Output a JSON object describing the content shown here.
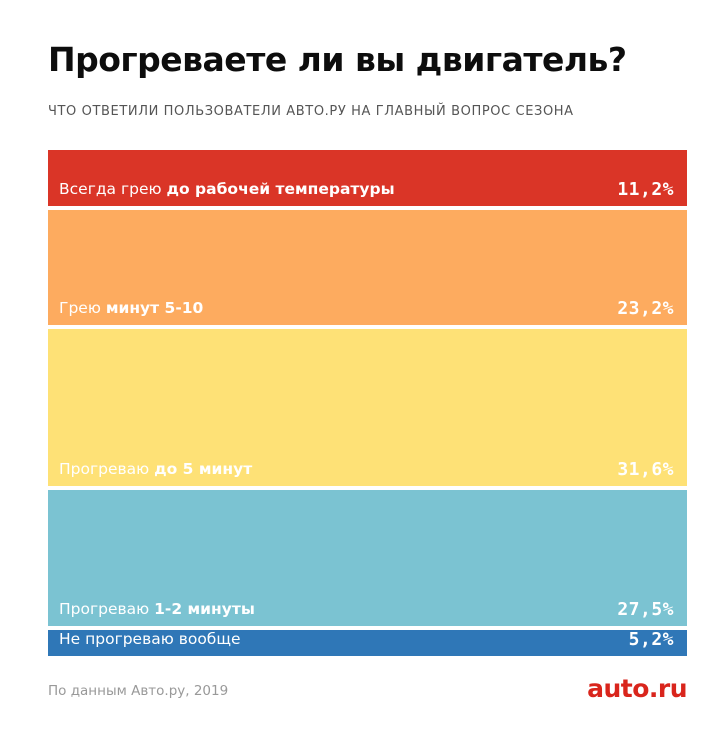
{
  "header": {
    "title": "Прогреваете ли вы двигатель?",
    "subtitle": "ЧТО ОТВЕТИЛИ ПОЛЬЗОВАТЕЛИ АВТО.РУ НА ГЛАВНЫЙ ВОПРОС СЕЗОНА"
  },
  "chart_data": {
    "type": "bar",
    "orientation": "stacked-vertical",
    "title": "Прогреваете ли вы двигатель?",
    "subtitle": "ЧТО ОТВЕТИЛИ ПОЛЬЗОВАТЕЛИ АВТО.РУ НА ГЛАВНЫЙ ВОПРОС СЕЗОНА",
    "unit": "%",
    "categories": [
      {
        "label_plain": "Всегда грею ",
        "label_bold": "до рабочей температуры",
        "value": 11.2,
        "value_label": "11,2%",
        "color": "#da3527"
      },
      {
        "label_plain": "Грею ",
        "label_bold": "минут 5-10",
        "value": 23.2,
        "value_label": "23,2%",
        "color": "#fdab5f"
      },
      {
        "label_plain": "Прогреваю ",
        "label_bold": "до 5 минут",
        "value": 31.6,
        "value_label": "31,6%",
        "color": "#fee176"
      },
      {
        "label_plain": "Прогреваю ",
        "label_bold": "1-2 минуты",
        "value": 27.5,
        "value_label": "27,5%",
        "color": "#7bc3d2"
      },
      {
        "label_plain": "Не прогреваю вообще",
        "label_bold": "",
        "value": 5.2,
        "value_label": "5,2%",
        "color": "#2f77b7"
      }
    ]
  },
  "footer": {
    "source": "По данным Авто.ру, 2019",
    "logo_text": "auto.ru",
    "logo_color": "#d9251c"
  }
}
